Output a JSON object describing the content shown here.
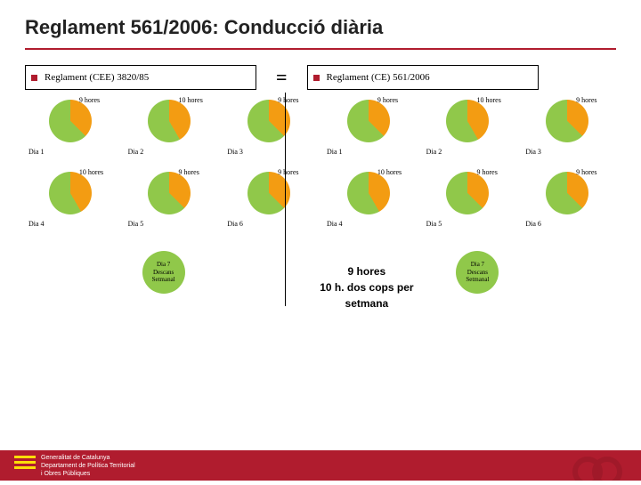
{
  "title_main": "Reglament 561/2006: ",
  "title_sub": "Conducció diària",
  "reg_left": "Reglament (CEE) 3820/85",
  "reg_right": "Reglament (CE) 561/2006",
  "eq": "=",
  "colors": {
    "green": "#90c84a",
    "orange": "#f39c12",
    "red": "#b01c2e",
    "rule": "#b01c2e"
  },
  "left": {
    "row1": [
      {
        "hours": "9 hores",
        "deg": 135,
        "day": "Dia 1"
      },
      {
        "hours": "10 hores",
        "deg": 150,
        "day": "Dia 2"
      },
      {
        "hours": "9 hores",
        "deg": 135,
        "day": "Dia 3"
      }
    ],
    "row2": [
      {
        "hours": "10 hores",
        "deg": 150,
        "day": "Dia 4"
      },
      {
        "hours": "9 hores",
        "deg": 135,
        "day": "Dia 5"
      },
      {
        "hours": "9 hores",
        "deg": 135,
        "day": "Dia 6"
      }
    ]
  },
  "right": {
    "row1": [
      {
        "hours": "9 hores",
        "deg": 135,
        "day": "Dia 1"
      },
      {
        "hours": "10 hores",
        "deg": 150,
        "day": "Dia 2"
      },
      {
        "hours": "9 hores",
        "deg": 135,
        "day": "Dia 3"
      }
    ],
    "row2": [
      {
        "hours": "10 hores",
        "deg": 150,
        "day": "Dia 4"
      },
      {
        "hours": "9 hores",
        "deg": 135,
        "day": "Dia 5"
      },
      {
        "hours": "9 hores",
        "deg": 135,
        "day": "Dia 6"
      }
    ]
  },
  "dia7_lines": [
    "Dia 7",
    "Descans",
    "Setmanal"
  ],
  "center_line1": "9 hores",
  "center_line2": "10 h. dos cops per setmana",
  "footer": {
    "l1": "Generalitat de Catalunya",
    "l2": "Departament de Política Territorial",
    "l3": "i Obres Públiques"
  }
}
